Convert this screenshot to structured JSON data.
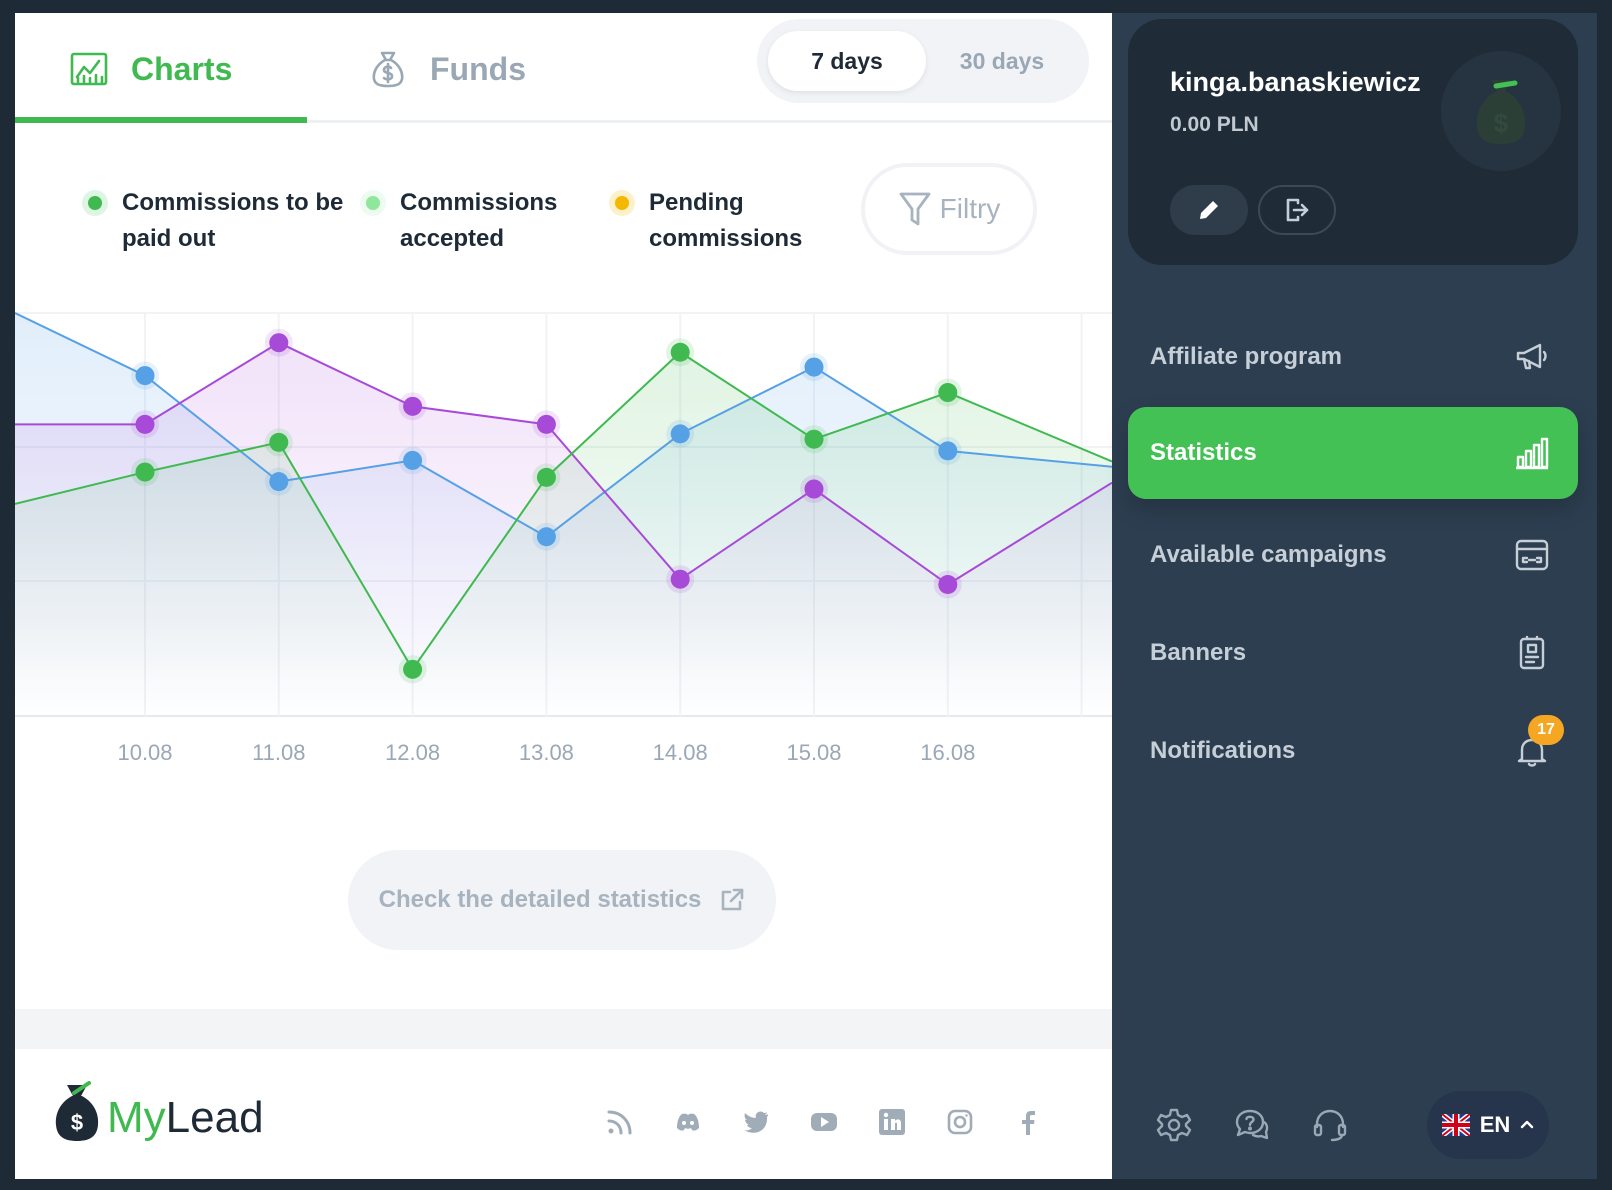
{
  "tabs": {
    "charts_label": "Charts",
    "funds_label": "Funds"
  },
  "range": {
    "options": [
      "7 days",
      "30 days"
    ],
    "selected": "7 days"
  },
  "legend": [
    {
      "label": "Commissions to be paid out",
      "color": "#3fb950"
    },
    {
      "label": "Commissions accepted",
      "color": "#8ee79a"
    },
    {
      "label": "Pending commissions",
      "color": "#f5b800"
    }
  ],
  "filter_label": "Filtry",
  "detail_link_label": "Check the detailed statistics",
  "chart_data": {
    "type": "area",
    "x": [
      "10.08",
      "11.08",
      "12.08",
      "13.08",
      "14.08",
      "15.08",
      "16.08"
    ],
    "series": [
      {
        "color": "#56a0e5",
        "values": [
          2.41,
          1.41,
          1.61,
          0.89,
          1.86,
          2.49,
          1.7
        ]
      },
      {
        "color": "#a84ad8",
        "values": [
          1.95,
          2.72,
          2.12,
          1.95,
          0.49,
          1.34,
          0.44
        ]
      },
      {
        "color": "#3fb950",
        "values": [
          1.5,
          1.78,
          -0.36,
          1.45,
          2.63,
          1.81,
          2.25
        ]
      }
    ],
    "lead_in": [
      3.0,
      1.95,
      1.2
    ],
    "lead_out": [
      1.55,
      1.4,
      1.6
    ],
    "ylim": [
      -0.8,
      3.0
    ],
    "grid": true
  },
  "footer": {
    "logo_my": "My",
    "logo_lead": "Lead",
    "socials": [
      "rss-icon",
      "discord-icon",
      "twitter-icon",
      "youtube-icon",
      "linkedin-icon",
      "instagram-icon",
      "facebook-icon"
    ]
  },
  "user": {
    "name": "kinga.banaskiewicz",
    "balance": "0.00 PLN"
  },
  "nav": [
    {
      "label": "Affiliate program",
      "icon": "megaphone-icon"
    },
    {
      "label": "Statistics",
      "icon": "bar-chart-icon",
      "active": true
    },
    {
      "label": "Available campaigns",
      "icon": "campaign-icon"
    },
    {
      "label": "Banners",
      "icon": "banner-icon"
    },
    {
      "label": "Notifications",
      "icon": "bell-icon",
      "badge": "17"
    }
  ],
  "language": {
    "code": "EN"
  },
  "colors": {
    "accent": "#43c155",
    "sidebar": "#2c3e50",
    "card": "#1f2b37",
    "badge": "#f5a623"
  }
}
